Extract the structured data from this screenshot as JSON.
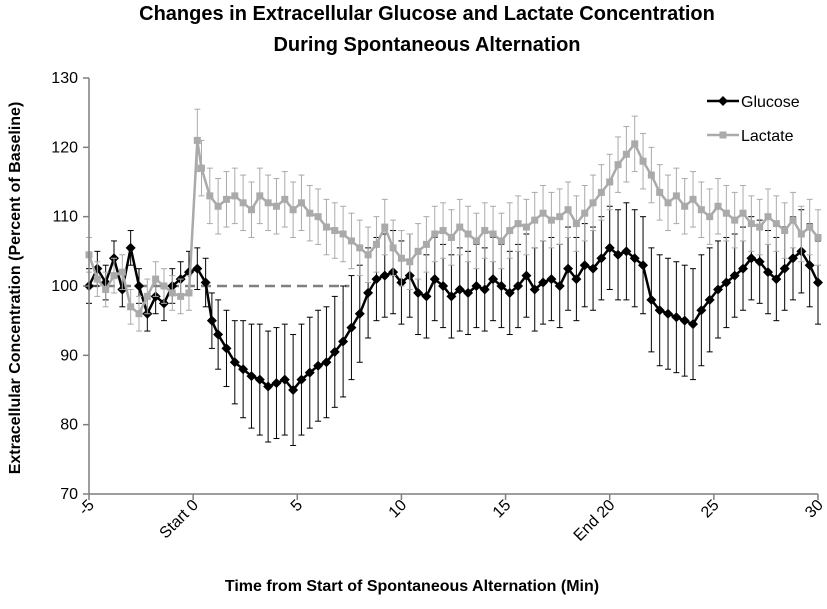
{
  "chart_data": {
    "type": "line",
    "title": [
      "Changes in Extracellular Glucose and Lactate Concentration",
      "During Spontaneous Alternation"
    ],
    "xlabel": "Time from Start of Spontaneous Alternation (Min)",
    "ylabel": "Extracellular Concentration (Percent of Baseline)",
    "xlim": [
      -5,
      30
    ],
    "ylim": [
      70,
      130
    ],
    "yticks": [
      70,
      80,
      90,
      100,
      110,
      120,
      130
    ],
    "xticks": [
      {
        "value": -5,
        "label": "-5"
      },
      {
        "value": 0,
        "label": "Start 0"
      },
      {
        "value": 5,
        "label": "5"
      },
      {
        "value": 10,
        "label": "10"
      },
      {
        "value": 15,
        "label": "15"
      },
      {
        "value": 20,
        "label": "End 20"
      },
      {
        "value": 25,
        "label": "25"
      },
      {
        "value": 30,
        "label": "30"
      }
    ],
    "baseline": {
      "value": 100,
      "x_range": [
        -5,
        7.5
      ],
      "style": "dashed"
    },
    "legend": {
      "position": "top-right"
    },
    "series": [
      {
        "name": "Glucose",
        "color": "#000000",
        "marker": "diamond",
        "points": [
          [
            -5.0,
            100.0,
            2.5
          ],
          [
            -4.6,
            102.5,
            2.5
          ],
          [
            -4.2,
            100.5,
            2.5
          ],
          [
            -3.8,
            104.0,
            2.5
          ],
          [
            -3.4,
            99.5,
            2.5
          ],
          [
            -3.0,
            105.5,
            2.5
          ],
          [
            -2.6,
            100.0,
            2.5
          ],
          [
            -2.2,
            96.0,
            2.5
          ],
          [
            -1.8,
            98.5,
            2.5
          ],
          [
            -1.4,
            97.5,
            2.5
          ],
          [
            -1.0,
            100.0,
            2.5
          ],
          [
            -0.6,
            101.0,
            2.5
          ],
          [
            -0.2,
            102.0,
            3.0
          ],
          [
            0.2,
            102.5,
            3.0
          ],
          [
            0.6,
            100.5,
            3.5
          ],
          [
            0.9,
            95.0,
            4.0
          ],
          [
            1.2,
            93.0,
            5.0
          ],
          [
            1.6,
            91.0,
            5.5
          ],
          [
            2.0,
            89.0,
            6.0
          ],
          [
            2.4,
            88.0,
            7.0
          ],
          [
            2.8,
            87.0,
            7.5
          ],
          [
            3.2,
            86.5,
            8.0
          ],
          [
            3.6,
            85.5,
            8.0
          ],
          [
            4.0,
            86.0,
            8.0
          ],
          [
            4.4,
            86.5,
            8.0
          ],
          [
            4.8,
            85.0,
            8.0
          ],
          [
            5.2,
            86.5,
            8.0
          ],
          [
            5.6,
            87.5,
            8.0
          ],
          [
            6.0,
            88.5,
            8.0
          ],
          [
            6.4,
            89.0,
            8.0
          ],
          [
            6.8,
            90.5,
            8.0
          ],
          [
            7.2,
            92.0,
            8.0
          ],
          [
            7.6,
            94.0,
            7.5
          ],
          [
            8.0,
            96.0,
            7.0
          ],
          [
            8.4,
            99.0,
            6.5
          ],
          [
            8.8,
            101.0,
            6.0
          ],
          [
            9.2,
            101.5,
            6.0
          ],
          [
            9.6,
            102.0,
            6.0
          ],
          [
            10.0,
            100.5,
            6.0
          ],
          [
            10.4,
            101.5,
            6.0
          ],
          [
            10.8,
            99.0,
            6.0
          ],
          [
            11.2,
            98.5,
            6.0
          ],
          [
            11.6,
            101.0,
            6.0
          ],
          [
            12.0,
            100.0,
            6.0
          ],
          [
            12.4,
            98.5,
            6.0
          ],
          [
            12.8,
            99.5,
            6.0
          ],
          [
            13.2,
            99.0,
            6.0
          ],
          [
            13.6,
            100.0,
            6.0
          ],
          [
            14.0,
            99.5,
            6.0
          ],
          [
            14.4,
            101.0,
            6.0
          ],
          [
            14.8,
            100.0,
            6.0
          ],
          [
            15.2,
            99.0,
            6.0
          ],
          [
            15.6,
            100.0,
            6.0
          ],
          [
            16.0,
            101.5,
            6.0
          ],
          [
            16.4,
            99.5,
            6.0
          ],
          [
            16.8,
            100.5,
            6.0
          ],
          [
            17.2,
            101.0,
            6.0
          ],
          [
            17.6,
            100.0,
            6.0
          ],
          [
            18.0,
            102.5,
            6.0
          ],
          [
            18.4,
            101.0,
            6.0
          ],
          [
            18.8,
            103.0,
            6.0
          ],
          [
            19.2,
            102.5,
            6.0
          ],
          [
            19.6,
            104.0,
            6.0
          ],
          [
            20.0,
            105.5,
            6.0
          ],
          [
            20.4,
            104.5,
            6.5
          ],
          [
            20.8,
            105.0,
            7.0
          ],
          [
            21.2,
            104.0,
            7.0
          ],
          [
            21.6,
            103.0,
            7.0
          ],
          [
            22.0,
            98.0,
            7.5
          ],
          [
            22.4,
            96.5,
            8.0
          ],
          [
            22.8,
            96.0,
            8.0
          ],
          [
            23.2,
            95.5,
            8.0
          ],
          [
            23.6,
            95.0,
            8.0
          ],
          [
            24.0,
            94.5,
            8.0
          ],
          [
            24.4,
            96.5,
            8.0
          ],
          [
            24.8,
            98.0,
            7.5
          ],
          [
            25.2,
            99.5,
            7.0
          ],
          [
            25.6,
            100.5,
            6.5
          ],
          [
            26.0,
            101.5,
            6.0
          ],
          [
            26.4,
            102.5,
            6.0
          ],
          [
            26.8,
            104.0,
            6.0
          ],
          [
            27.2,
            103.5,
            6.0
          ],
          [
            27.6,
            102.0,
            6.0
          ],
          [
            28.0,
            101.0,
            6.0
          ],
          [
            28.4,
            102.5,
            6.0
          ],
          [
            28.8,
            104.0,
            6.0
          ],
          [
            29.2,
            105.0,
            6.0
          ],
          [
            29.6,
            103.0,
            6.0
          ],
          [
            30.0,
            100.5,
            6.0
          ]
        ]
      },
      {
        "name": "Lactate",
        "color": "#aaaaaa",
        "marker": "square",
        "points": [
          [
            -5.0,
            104.5,
            2.5
          ],
          [
            -4.6,
            101.0,
            2.5
          ],
          [
            -4.2,
            99.5,
            2.5
          ],
          [
            -3.8,
            101.5,
            2.5
          ],
          [
            -3.4,
            102.0,
            2.5
          ],
          [
            -3.0,
            97.0,
            2.5
          ],
          [
            -2.6,
            96.0,
            2.5
          ],
          [
            -2.2,
            98.5,
            2.5
          ],
          [
            -1.8,
            101.0,
            2.5
          ],
          [
            -1.4,
            100.0,
            2.5
          ],
          [
            -1.0,
            99.0,
            2.5
          ],
          [
            -0.6,
            98.5,
            2.5
          ],
          [
            -0.2,
            99.0,
            2.5
          ],
          [
            0.2,
            121.0,
            4.5
          ],
          [
            0.4,
            117.0,
            4.0
          ],
          [
            0.8,
            113.0,
            4.0
          ],
          [
            1.2,
            111.5,
            4.0
          ],
          [
            1.6,
            112.5,
            4.0
          ],
          [
            2.0,
            113.0,
            4.0
          ],
          [
            2.4,
            112.0,
            4.0
          ],
          [
            2.8,
            111.0,
            4.0
          ],
          [
            3.2,
            113.0,
            4.0
          ],
          [
            3.6,
            112.0,
            4.0
          ],
          [
            4.0,
            111.5,
            4.0
          ],
          [
            4.4,
            112.5,
            4.0
          ],
          [
            4.8,
            111.0,
            4.0
          ],
          [
            5.2,
            112.0,
            4.0
          ],
          [
            5.6,
            110.5,
            4.0
          ],
          [
            6.0,
            110.0,
            4.0
          ],
          [
            6.4,
            108.5,
            4.0
          ],
          [
            6.8,
            108.0,
            4.0
          ],
          [
            7.2,
            107.5,
            4.0
          ],
          [
            7.6,
            106.5,
            4.0
          ],
          [
            8.0,
            105.5,
            4.0
          ],
          [
            8.4,
            104.5,
            4.0
          ],
          [
            8.8,
            106.0,
            4.0
          ],
          [
            9.2,
            108.5,
            4.0
          ],
          [
            9.6,
            105.5,
            4.0
          ],
          [
            10.0,
            104.0,
            4.0
          ],
          [
            10.4,
            103.5,
            4.0
          ],
          [
            10.8,
            105.0,
            4.0
          ],
          [
            11.2,
            106.0,
            4.0
          ],
          [
            11.6,
            107.5,
            4.0
          ],
          [
            12.0,
            108.0,
            4.0
          ],
          [
            12.4,
            107.0,
            4.0
          ],
          [
            12.8,
            108.5,
            4.0
          ],
          [
            13.2,
            107.5,
            4.0
          ],
          [
            13.6,
            106.5,
            4.0
          ],
          [
            14.0,
            108.0,
            4.0
          ],
          [
            14.4,
            107.5,
            4.0
          ],
          [
            14.8,
            106.5,
            4.0
          ],
          [
            15.2,
            108.0,
            4.0
          ],
          [
            15.6,
            109.0,
            4.0
          ],
          [
            16.0,
            108.5,
            4.0
          ],
          [
            16.4,
            109.5,
            4.0
          ],
          [
            16.8,
            110.5,
            4.0
          ],
          [
            17.2,
            109.5,
            4.0
          ],
          [
            17.6,
            110.0,
            4.0
          ],
          [
            18.0,
            111.0,
            4.0
          ],
          [
            18.4,
            109.0,
            4.0
          ],
          [
            18.8,
            110.5,
            4.0
          ],
          [
            19.2,
            112.0,
            4.0
          ],
          [
            19.6,
            113.5,
            4.0
          ],
          [
            20.0,
            115.0,
            4.0
          ],
          [
            20.4,
            117.5,
            4.0
          ],
          [
            20.8,
            119.0,
            4.0
          ],
          [
            21.2,
            120.5,
            4.0
          ],
          [
            21.6,
            118.0,
            4.0
          ],
          [
            22.0,
            116.0,
            4.0
          ],
          [
            22.4,
            113.5,
            4.0
          ],
          [
            22.8,
            112.0,
            4.0
          ],
          [
            23.2,
            113.0,
            4.0
          ],
          [
            23.6,
            111.5,
            4.0
          ],
          [
            24.0,
            112.5,
            4.0
          ],
          [
            24.4,
            111.0,
            4.0
          ],
          [
            24.8,
            110.0,
            4.0
          ],
          [
            25.2,
            111.5,
            4.0
          ],
          [
            25.6,
            110.5,
            4.0
          ],
          [
            26.0,
            109.5,
            4.0
          ],
          [
            26.4,
            110.5,
            4.0
          ],
          [
            26.8,
            109.0,
            4.0
          ],
          [
            27.2,
            108.5,
            4.0
          ],
          [
            27.6,
            110.0,
            4.0
          ],
          [
            28.0,
            109.0,
            4.0
          ],
          [
            28.4,
            108.0,
            4.0
          ],
          [
            28.8,
            109.5,
            4.0
          ],
          [
            29.2,
            107.5,
            4.0
          ],
          [
            29.6,
            108.5,
            4.0
          ],
          [
            30.0,
            107.0,
            4.0
          ]
        ]
      }
    ]
  }
}
